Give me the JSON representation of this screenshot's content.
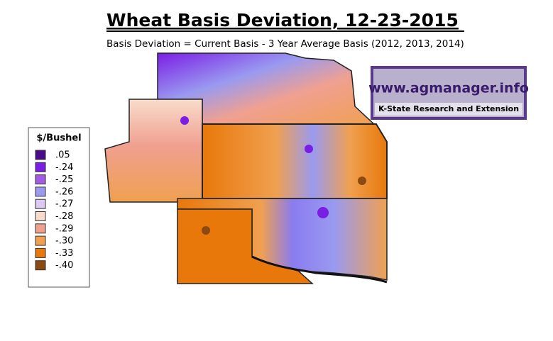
{
  "header": {
    "title": "Wheat Basis Deviation, 12-23-2015",
    "subtitle": "Basis Deviation = Current Basis - 3 Year Average Basis (2012, 2013, 2014)"
  },
  "legend": {
    "title": "$/Bushel",
    "items": [
      {
        "label": ".05",
        "color": "#4b0a8c"
      },
      {
        "label": "-.24",
        "color": "#7a1ee6"
      },
      {
        "label": "-.25",
        "color": "#a35ae6"
      },
      {
        "label": "-.26",
        "color": "#9a9af0"
      },
      {
        "label": "-.27",
        "color": "#dccaf2"
      },
      {
        "label": "-.28",
        "color": "#f8dccb"
      },
      {
        "label": "-.29",
        "color": "#f0a090"
      },
      {
        "label": "-.30",
        "color": "#f0a050"
      },
      {
        "label": "-.33",
        "color": "#e8780a"
      },
      {
        "label": "-.40",
        "color": "#8a4a10"
      }
    ]
  },
  "logo": {
    "url": "www.agmanager.info",
    "org": "K-State Research and Extension"
  }
}
